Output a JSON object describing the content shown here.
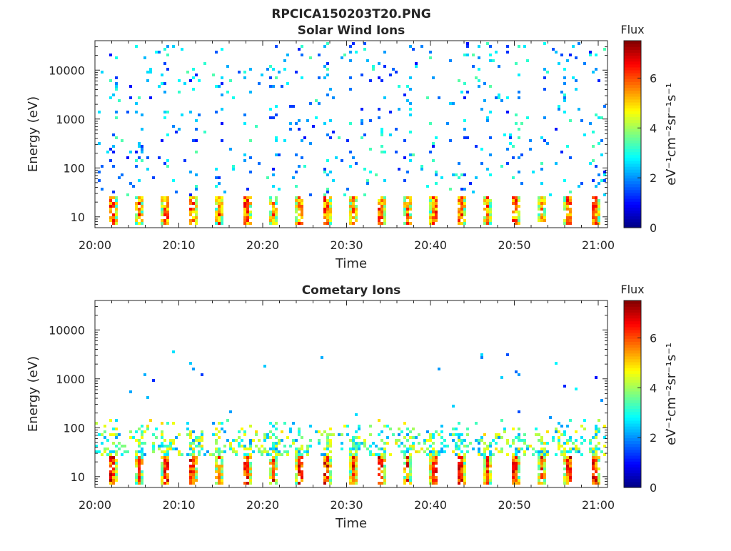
{
  "figure": {
    "title": "RPCICA150203T20.PNG"
  },
  "colormap": [
    "#00007f",
    "#0000ff",
    "#007fff",
    "#00ffff",
    "#7fff7f",
    "#ffff00",
    "#ff7f00",
    "#ff0000",
    "#7f0000"
  ],
  "chart_data": [
    {
      "type": "heatmap",
      "title": "Solar Wind Ions",
      "xlabel": "Time",
      "ylabel": "Energy (eV)",
      "x_range": [
        "20:00",
        "21:01"
      ],
      "x_ticks": [
        "20:00",
        "20:10",
        "20:20",
        "20:30",
        "20:40",
        "20:50",
        "21:00"
      ],
      "y_scale": "log",
      "y_range": [
        6,
        40000
      ],
      "y_ticks": [
        10,
        100,
        1000,
        10000
      ],
      "y_tick_labels": [
        "10",
        "100",
        "1000",
        "10000"
      ],
      "colorbar": {
        "title": "Flux",
        "units": "eV⁻¹cm⁻²sr⁻¹s⁻¹",
        "range": [
          0,
          7.5
        ],
        "ticks": [
          "0",
          "2",
          "4",
          "6"
        ]
      },
      "pattern": {
        "sweep_period_min": 3.2,
        "peak_flux": 6.8,
        "peak_energy_range_eV": [
          9,
          27
        ],
        "sparse_high_energy_counts": true
      }
    },
    {
      "type": "heatmap",
      "title": "Cometary Ions",
      "xlabel": "Time",
      "ylabel": "Energy (eV)",
      "x_range": [
        "20:00",
        "21:01"
      ],
      "x_ticks": [
        "20:00",
        "20:10",
        "20:20",
        "20:30",
        "20:40",
        "20:50",
        "21:00"
      ],
      "y_scale": "log",
      "y_range": [
        6,
        40000
      ],
      "y_ticks": [
        10,
        100,
        1000,
        10000
      ],
      "y_tick_labels": [
        "10",
        "100",
        "1000",
        "10000"
      ],
      "colorbar": {
        "title": "Flux",
        "units": "eV⁻¹cm⁻²sr⁻¹s⁻¹",
        "range": [
          0,
          7.5
        ],
        "ticks": [
          "0",
          "2",
          "4",
          "6"
        ]
      },
      "pattern": {
        "sweep_period_min": 3.2,
        "peak_flux": 7.2,
        "peak_energy_range_eV": [
          9,
          27
        ],
        "band_energy_range_eV": [
          30,
          150
        ],
        "sparse_high_energy_counts": true
      }
    }
  ]
}
